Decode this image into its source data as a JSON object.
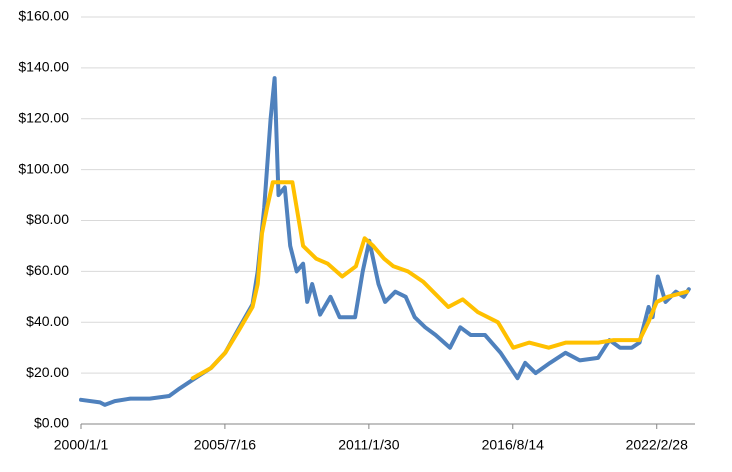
{
  "chart_data": {
    "type": "line",
    "xlim": [
      "2000/1/1",
      "2023/8/20"
    ],
    "xticks": [
      "2000/1/1",
      "2005/7/16",
      "2011/1/30",
      "2016/8/14",
      "2022/2/28"
    ],
    "ylim": [
      0,
      160
    ],
    "yticks": [
      {
        "value": 0,
        "label": "$0.00"
      },
      {
        "value": 20,
        "label": "$20.00"
      },
      {
        "value": 40,
        "label": "$40.00"
      },
      {
        "value": 60,
        "label": "$60.00"
      },
      {
        "value": 80,
        "label": "$80.00"
      },
      {
        "value": 100,
        "label": "$100.00"
      },
      {
        "value": 120,
        "label": "$120.00"
      },
      {
        "value": 140,
        "label": "$140.00"
      },
      {
        "value": 160,
        "label": "$160.00"
      }
    ],
    "grid": true,
    "series": [
      {
        "color": "#4f81bd",
        "x": [
          "2000/1/1",
          "2000/9/24",
          "2000/12/1",
          "2001/4/20",
          "2001/11/25",
          "2002/8/25",
          "2003/5/25",
          "2003/10/20",
          "2004/5/25",
          "2005/1/1",
          "2005/7/20",
          "2006/2/5",
          "2006/8/8",
          "2006/10/20",
          "2007/1/20",
          "2007/4/20",
          "2007/6/15",
          "2007/8/8",
          "2007/11/5",
          "2008/1/20",
          "2008/4/20",
          "2008/7/20",
          "2008/9/15",
          "2008/11/25",
          "2009/3/15",
          "2009/8/8",
          "2009/12/15",
          "2010/7/20",
          "2010/11/5",
          "2011/2/5",
          "2011/6/15",
          "2011/9/15",
          "2012/2/5",
          "2012/7/1",
          "2012/11/5",
          "2013/4/1",
          "2013/8/25",
          "2014/3/15",
          "2014/8/8",
          "2015/1/1",
          "2015/7/20",
          "2016/2/25",
          "2016/10/20",
          "2017/2/5",
          "2017/7/1",
          "2018/1/20",
          "2018/8/25",
          "2019/3/15",
          "2019/11/25",
          "2020/5/5",
          "2020/10/1",
          "2021/3/15",
          "2021/7/1",
          "2021/11/5",
          "2022/1/1",
          "2022/3/15",
          "2022/7/1",
          "2022/11/25",
          "2023/3/15",
          "2023/5/25"
        ],
        "values": [
          9.5,
          8.5,
          7.5,
          9,
          10,
          10,
          11,
          14,
          18,
          22,
          28,
          38,
          47,
          60,
          85,
          120,
          136,
          90,
          93,
          70,
          60,
          63,
          48,
          55,
          43,
          50,
          42,
          42,
          60,
          72,
          55,
          48,
          52,
          50,
          42,
          38,
          35,
          30,
          38,
          35,
          35,
          28,
          18,
          24,
          20,
          24,
          28,
          25,
          26,
          33,
          30,
          30,
          32,
          46,
          42,
          58,
          48,
          52,
          50,
          53
        ]
      },
      {
        "color": "#ffc000",
        "x": [
          "2004/4/20",
          "2005/1/1",
          "2005/7/20",
          "2006/2/1",
          "2006/8/8",
          "2006/10/20",
          "2006/12/20",
          "2007/3/1",
          "2007/5/20",
          "2008/2/20",
          "2008/7/20",
          "2009/1/20",
          "2009/7/1",
          "2010/1/20",
          "2010/8/1",
          "2010/12/1",
          "2011/4/1",
          "2011/9/1",
          "2012/1/10",
          "2012/8/1",
          "2013/3/1",
          "2013/10/1",
          "2014/2/20",
          "2014/9/10",
          "2015/4/10",
          "2016/1/20",
          "2016/8/20",
          "2017/4/1",
          "2018/1/1",
          "2018/9/1",
          "2019/12/1",
          "2020/7/1",
          "2021/7/1",
          "2021/11/1",
          "2022/3/1",
          "2022/8/1",
          "2023/5/1"
        ],
        "values": [
          18,
          22,
          28,
          37,
          46,
          55,
          75,
          85,
          95,
          95,
          70,
          65,
          63,
          58,
          62,
          73,
          70,
          65,
          62,
          60,
          56,
          50,
          46,
          49,
          44,
          40,
          30,
          32,
          30,
          32,
          32,
          33,
          33,
          40,
          48,
          50,
          52
        ]
      }
    ]
  }
}
